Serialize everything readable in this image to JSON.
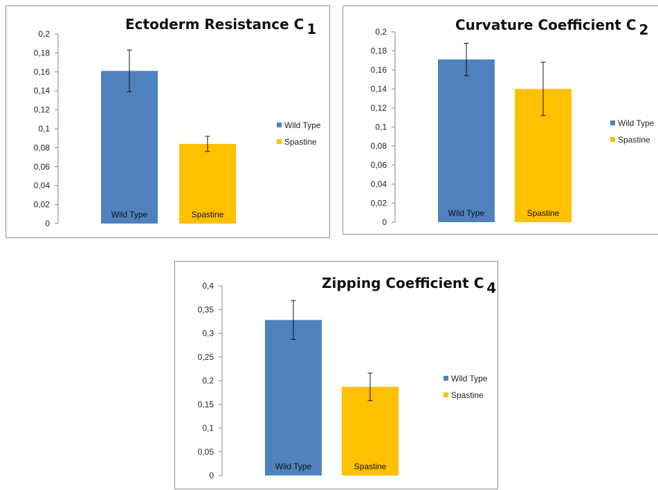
{
  "chart_data": [
    {
      "type": "bar",
      "title": "Ectoderm Resistance C",
      "title_subscript": "1",
      "categories": [
        "Wild Type",
        "Spastine"
      ],
      "values": [
        0.161,
        0.084
      ],
      "errors": [
        0.022,
        0.008
      ],
      "colors": [
        "#4f81bd",
        "#ffc000"
      ],
      "ylim": [
        0,
        0.2
      ],
      "yticks": [
        "0",
        "0,02",
        "0,04",
        "0,06",
        "0,08",
        "0,1",
        "0,12",
        "0,14",
        "0,16",
        "0,18",
        "0,2"
      ],
      "legend": [
        "Wild Type",
        "Spastine"
      ],
      "legend_position": "right",
      "grid": false
    },
    {
      "type": "bar",
      "title": "Curvature Coefficient C",
      "title_subscript": "2",
      "categories": [
        "Wild Type",
        "Spastine"
      ],
      "values": [
        0.171,
        0.14
      ],
      "errors": [
        0.017,
        0.028
      ],
      "colors": [
        "#4f81bd",
        "#ffc000"
      ],
      "ylim": [
        0,
        0.2
      ],
      "yticks": [
        "0",
        "0,02",
        "0,04",
        "0,06",
        "0,08",
        "0,1",
        "0,12",
        "0,14",
        "0,16",
        "0,18",
        "0,2"
      ],
      "legend": [
        "Wild Type",
        "Spastine"
      ],
      "legend_position": "right",
      "grid": false
    },
    {
      "type": "bar",
      "title": "Zipping Coefficient C",
      "title_subscript": "4",
      "categories": [
        "Wild Type",
        "Spastine"
      ],
      "values": [
        0.328,
        0.187
      ],
      "errors": [
        0.041,
        0.029
      ],
      "colors": [
        "#4f81bd",
        "#ffc000"
      ],
      "ylim": [
        0,
        0.4
      ],
      "yticks": [
        "0",
        "0,05",
        "0,1",
        "0,15",
        "0,2",
        "0,25",
        "0,3",
        "0,35",
        "0,4"
      ],
      "legend": [
        "Wild Type",
        "Spastine"
      ],
      "legend_position": "right",
      "grid": false
    }
  ]
}
